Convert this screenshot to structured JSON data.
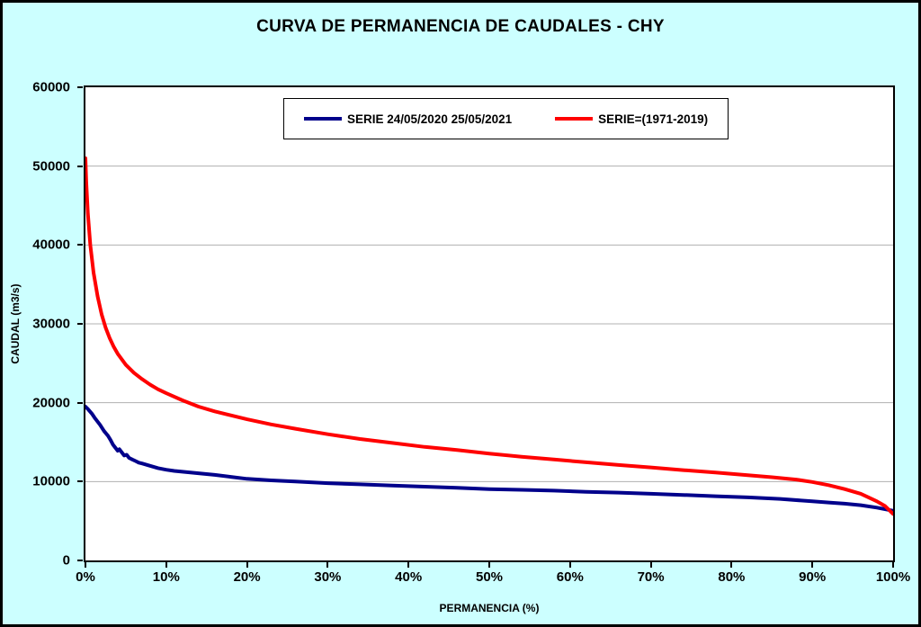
{
  "page": {
    "title": "CURVA DE PERMANENCIA DE CAUDALES - CHY"
  },
  "chart_data": {
    "type": "line",
    "title": "CURVA DE PERMANENCIA DE CAUDALES - CHY",
    "xlabel": "PERMANENCIA (%)",
    "ylabel": "CAUDAL (m3/s)",
    "xlim": [
      0,
      100
    ],
    "ylim": [
      0,
      60000
    ],
    "xticks": [
      0,
      10,
      20,
      30,
      40,
      50,
      60,
      70,
      80,
      90,
      100
    ],
    "xtick_labels": [
      "0%",
      "10%",
      "20%",
      "30%",
      "40%",
      "50%",
      "60%",
      "70%",
      "80%",
      "90%",
      "100%"
    ],
    "yticks": [
      0,
      10000,
      20000,
      30000,
      40000,
      50000,
      60000
    ],
    "ytick_labels": [
      "0",
      "10000",
      "20000",
      "30000",
      "40000",
      "50000",
      "60000"
    ],
    "grid": "horizontal",
    "grid_color": "#b0b0b0",
    "plot_background": "#ffffff",
    "canvas_background": "#CCFFFF",
    "legend_position": "top-center",
    "series": [
      {
        "name": "SERIE 24/05/2020 25/05/2021",
        "color": "#00008B",
        "width": 4,
        "x": [
          0,
          0.3,
          0.8,
          1.2,
          1.8,
          2.3,
          2.8,
          3.1,
          3.4,
          3.7,
          4.0,
          4.2,
          4.5,
          4.8,
          5.1,
          5.4,
          5.8,
          6.2,
          6.6,
          7,
          8,
          9,
          10,
          11,
          12,
          14,
          16,
          18,
          20,
          23,
          26,
          30,
          34,
          38,
          42,
          46,
          50,
          54,
          58,
          62,
          66,
          70,
          74,
          78,
          82,
          86,
          90,
          92,
          94,
          96,
          98,
          100
        ],
        "y": [
          19500,
          19200,
          18600,
          18000,
          17200,
          16400,
          15800,
          15300,
          14700,
          14300,
          13900,
          14100,
          13700,
          13300,
          13400,
          13000,
          12800,
          12600,
          12400,
          12300,
          12000,
          11700,
          11500,
          11350,
          11250,
          11050,
          10850,
          10600,
          10350,
          10150,
          10000,
          9800,
          9650,
          9500,
          9350,
          9200,
          9050,
          8950,
          8850,
          8700,
          8600,
          8450,
          8300,
          8150,
          8000,
          7800,
          7500,
          7350,
          7200,
          7000,
          6700,
          6300
        ]
      },
      {
        "name": "SERIE=(1971-2019)",
        "color": "#FF0000",
        "width": 4,
        "x": [
          0,
          0.1,
          0.3,
          0.6,
          1.0,
          1.5,
          2.0,
          2.5,
          3.0,
          3.5,
          4,
          5,
          6,
          7,
          8,
          9,
          10,
          12,
          14,
          16,
          18,
          20,
          23,
          26,
          30,
          34,
          38,
          42,
          46,
          50,
          54,
          58,
          62,
          66,
          70,
          74,
          78,
          82,
          85,
          88,
          90,
          92,
          94,
          96,
          98,
          99,
          100
        ],
        "y": [
          51000,
          48000,
          44000,
          40000,
          36500,
          33500,
          31200,
          29500,
          28200,
          27100,
          26200,
          24800,
          23800,
          23000,
          22300,
          21700,
          21200,
          20300,
          19500,
          18900,
          18400,
          17900,
          17250,
          16700,
          16000,
          15400,
          14900,
          14400,
          14000,
          13550,
          13150,
          12800,
          12450,
          12100,
          11800,
          11450,
          11150,
          10800,
          10550,
          10250,
          9950,
          9550,
          9050,
          8450,
          7500,
          6900,
          5900
        ]
      }
    ]
  }
}
